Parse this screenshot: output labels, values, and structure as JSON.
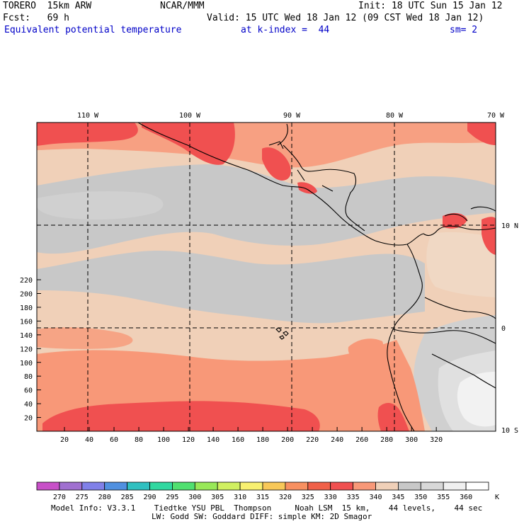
{
  "header": {
    "model": "TORERO  15km ARW",
    "center": "NCAR/MMM",
    "init": "Init: 18 UTC Sun 15 Jan 12",
    "fcst": "Fcst:   69 h",
    "valid": "Valid: 15 UTC Wed 18 Jan 12 (09 CST Wed 18 Jan 12)",
    "field": "Equivalent potential temperature",
    "level": "at k-index =  44",
    "smooth": "sm= 2"
  },
  "axes": {
    "lon_labels": [
      "110 W",
      "100 W",
      "90 W",
      "80 W",
      "70 W"
    ],
    "lat_labels": [
      "10 N",
      "0",
      "10 S"
    ],
    "y_ticks": [
      "220",
      "200",
      "180",
      "160",
      "140",
      "120",
      "100",
      "80",
      "60",
      "40",
      "20"
    ],
    "x_ticks": [
      "20",
      "40",
      "60",
      "80",
      "100",
      "120",
      "140",
      "160",
      "180",
      "200",
      "220",
      "240",
      "260",
      "280",
      "300",
      "320"
    ]
  },
  "legend": {
    "values": [
      "270",
      "275",
      "280",
      "285",
      "290",
      "295",
      "300",
      "305",
      "310",
      "315",
      "320",
      "325",
      "330",
      "335",
      "340",
      "345",
      "350",
      "355",
      "360"
    ],
    "unit": "K",
    "colors": [
      "#c850c8",
      "#a070d0",
      "#8080e8",
      "#5090e0",
      "#30c0c0",
      "#30d8a0",
      "#50e070",
      "#98e858",
      "#d0f060",
      "#f8f070",
      "#f8c858",
      "#f89060",
      "#f06048",
      "#f05050",
      "#f89878",
      "#f0d0b8",
      "#c8c8c8",
      "#d8d8d8",
      "#f0f0f0",
      "#ffffff"
    ]
  },
  "footer": {
    "line1": "Model Info: V3.3.1    Tiedtke YSU PBL  Thompson     Noah LSM  15 km,    44 levels,    44 sec",
    "line2": "LW: Godd SW: Goddard DIFF: simple KM: 2D Smagor"
  }
}
